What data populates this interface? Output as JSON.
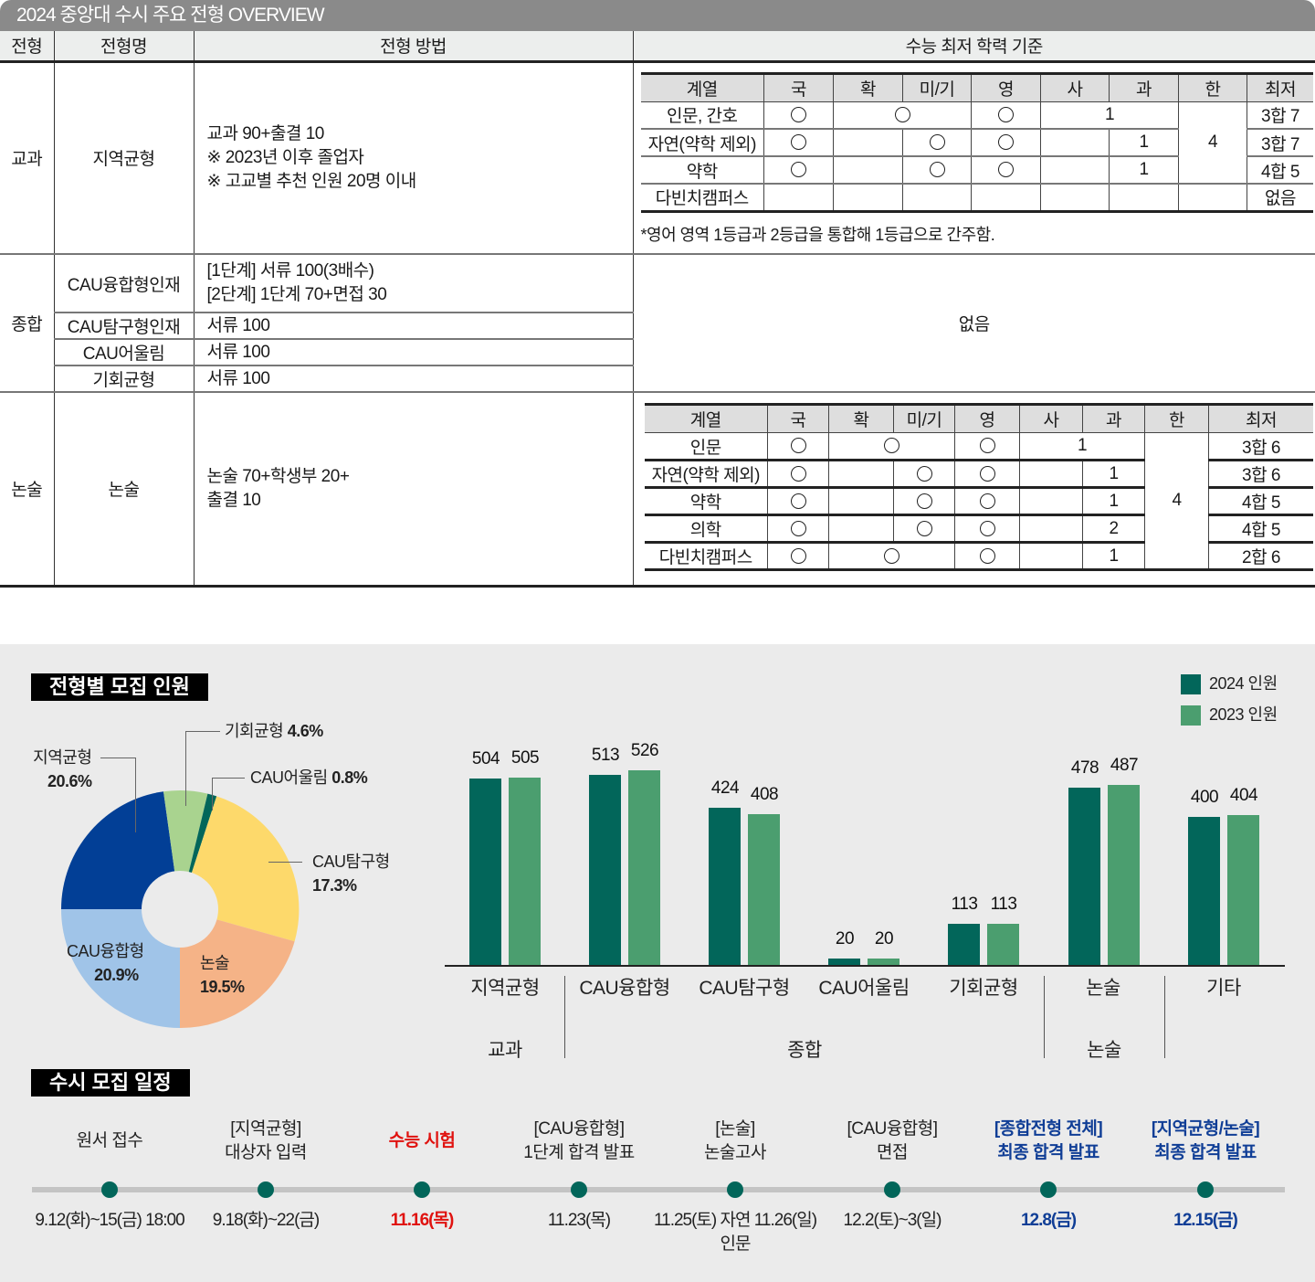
{
  "title": "2024 중앙대 수시 주요 전형 OVERVIEW",
  "table": {
    "headers": [
      "전형",
      "전형명",
      "전형 방법",
      "수능 최저 학력 기준"
    ],
    "rows": [
      {
        "type": "교과",
        "name": "지역균형",
        "method": [
          "교과 90+출결 10",
          "※ 2023년 이후 졸업자",
          "※ 고교별 추천 인원 20명 이내"
        ]
      },
      {
        "type": "종합",
        "items": [
          {
            "name": "CAU융합형인재",
            "method": [
              "[1단계] 서류 100(3배수)",
              "[2단계] 1단계 70+면접 30"
            ]
          },
          {
            "name": "CAU탐구형인재",
            "method": [
              "서류 100"
            ]
          },
          {
            "name": "CAU어울림",
            "method": [
              "서류 100"
            ]
          },
          {
            "name": "기회균형",
            "method": [
              "서류 100"
            ]
          }
        ],
        "minimum": "없음"
      },
      {
        "type": "논술",
        "name": "논술",
        "method": [
          "논술 70+학생부 20+",
          "출결 10"
        ]
      }
    ]
  },
  "min_table_gyogwa": {
    "headers": [
      "계열",
      "국",
      "확",
      "미/기",
      "영",
      "사",
      "과",
      "한",
      "최저"
    ],
    "rows": [
      {
        "track": "인문, 간호",
        "kor": "○",
        "math": "○",
        "eng": "○",
        "inquiry": "1",
        "han": "4",
        "min": "3합 7"
      },
      {
        "track": "자연(약학 제외)",
        "kor": "○",
        "migi": "○",
        "eng": "○",
        "sci": "1",
        "min": "3합 7"
      },
      {
        "track": "약학",
        "kor": "○",
        "migi": "○",
        "eng": "○",
        "sci": "1",
        "min": "4합 5"
      },
      {
        "track": "다빈치캠퍼스",
        "min": "없음"
      }
    ],
    "note": "*영어 영역 1등급과 2등급을 통합해 1등급으로 간주함."
  },
  "min_table_nonsul": {
    "headers": [
      "계열",
      "국",
      "확",
      "미/기",
      "영",
      "사",
      "과",
      "한",
      "최저"
    ],
    "rows": [
      {
        "track": "인문",
        "kor": "○",
        "math": "○",
        "eng": "○",
        "inquiry": "1",
        "han": "4",
        "min": "3합 6"
      },
      {
        "track": "자연(약학 제외)",
        "kor": "○",
        "migi": "○",
        "eng": "○",
        "sci": "1",
        "min": "3합 6"
      },
      {
        "track": "약학",
        "kor": "○",
        "migi": "○",
        "eng": "○",
        "sci": "1",
        "min": "4합 5"
      },
      {
        "track": "의학",
        "kor": "○",
        "migi": "○",
        "eng": "○",
        "sci": "2",
        "min": "4합 5"
      },
      {
        "track": "다빈치캠퍼스",
        "kor": "○",
        "math": "○",
        "eng": "○",
        "sci": "1",
        "min": "2합 6"
      }
    ]
  },
  "section_recruit_label": "전형별 모집 인원",
  "section_schedule_label": "수시 모집 일정",
  "chart_data": [
    {
      "type": "pie",
      "title": "전형별 모집 인원",
      "labels": [
        "지역균형",
        "기회균형",
        "CAU어울림",
        "CAU탐구형",
        "논술",
        "CAU융합형"
      ],
      "values": [
        20.6,
        4.6,
        0.8,
        17.3,
        19.5,
        20.9
      ],
      "value_labels": [
        "20.6%",
        "4.6%",
        "0.8%",
        "17.3%",
        "19.5%",
        "20.9%"
      ],
      "colors": [
        "#023f96",
        "#a9d38f",
        "#02665a",
        "#fdd96b",
        "#f5b387",
        "#a0c4e8"
      ]
    },
    {
      "type": "bar",
      "categories": [
        "지역균형",
        "CAU융합형",
        "CAU탐구형",
        "CAU어울림",
        "기회균형",
        "논술",
        "기타"
      ],
      "groups": [
        {
          "label": "교과",
          "categories": [
            "지역균형"
          ]
        },
        {
          "label": "종합",
          "categories": [
            "CAU융합형",
            "CAU탐구형",
            "CAU어울림",
            "기회균형"
          ]
        },
        {
          "label": "논술",
          "categories": [
            "논술"
          ]
        }
      ],
      "series": [
        {
          "name": "2024 인원",
          "color": "#02665a",
          "values": [
            504,
            513,
            424,
            20,
            113,
            478,
            400
          ]
        },
        {
          "name": "2023 인원",
          "color": "#4b9e6f",
          "values": [
            505,
            526,
            408,
            20,
            113,
            487,
            404
          ]
        }
      ],
      "legend_position": "top-right",
      "grid": false
    }
  ],
  "pie_labels": [
    {
      "name": "지역균형",
      "pct": "20.6%"
    },
    {
      "name": "기회균형",
      "pct": "4.6%"
    },
    {
      "name": "CAU어울림",
      "pct": "0.8%"
    },
    {
      "name": "CAU탐구형",
      "pct": "17.3%"
    },
    {
      "name": "논술",
      "pct": "19.5%"
    },
    {
      "name": "CAU융합형",
      "pct": "20.9%"
    }
  ],
  "bar_labels": {
    "categories": [
      "지역균형",
      "CAU융합형",
      "CAU탐구형",
      "CAU어울림",
      "기회균형",
      "논술",
      "기타"
    ],
    "groups": [
      "교과",
      "종합",
      "논술"
    ],
    "v2024": [
      "504",
      "513",
      "424",
      "20",
      "113",
      "478",
      "400"
    ],
    "v2023": [
      "505",
      "526",
      "408",
      "20",
      "113",
      "487",
      "404"
    ],
    "legend": [
      "2024 인원",
      "2023 인원"
    ]
  },
  "schedule": [
    {
      "title": [
        "",
        "원서 접수"
      ],
      "date": [
        "9.12(화)~15(금) 18:00",
        ""
      ],
      "style": ""
    },
    {
      "title": [
        "[지역균형]",
        "대상자 입력"
      ],
      "date": [
        "9.18(화)~22(금)",
        ""
      ],
      "style": ""
    },
    {
      "title": [
        "",
        "수능 시험"
      ],
      "date": [
        "11.16(목)",
        ""
      ],
      "style": "red"
    },
    {
      "title": [
        "[CAU융합형]",
        "1단계 합격 발표"
      ],
      "date": [
        "11.23(목)",
        ""
      ],
      "style": ""
    },
    {
      "title": [
        "[논술]",
        "논술고사"
      ],
      "date": [
        "11.25(토) 자연 11.26(일)",
        "인문"
      ],
      "style": ""
    },
    {
      "title": [
        "[CAU융합형]",
        "면접"
      ],
      "date": [
        "12.2(토)~3(일)",
        ""
      ],
      "style": ""
    },
    {
      "title": [
        "[종합전형 전체]",
        "최종 합격 발표"
      ],
      "date": [
        "12.8(금)",
        ""
      ],
      "style": "blue"
    },
    {
      "title": [
        "[지역균형/논술]",
        "최종 합격 발표"
      ],
      "date": [
        "12.15(금)",
        ""
      ],
      "style": "blue"
    }
  ]
}
